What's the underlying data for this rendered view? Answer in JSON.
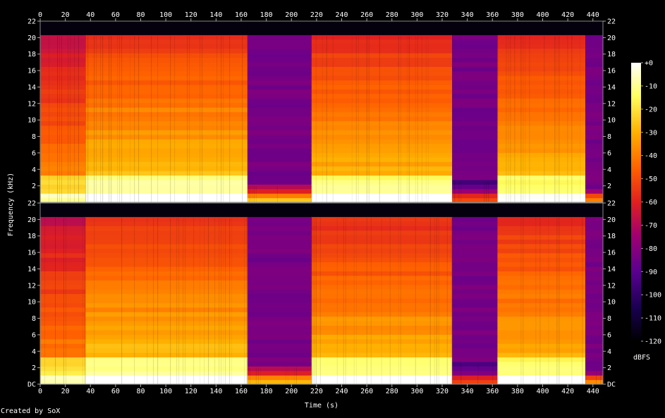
{
  "chart_data": {
    "type": "heatmap",
    "title": "",
    "xlabel": "Time (s)",
    "ylabel": "Frequency (kHz)",
    "xlim": [
      0,
      448
    ],
    "ylim": [
      0,
      22
    ],
    "x_ticks": [
      "0",
      "20",
      "40",
      "60",
      "80",
      "100",
      "120",
      "140",
      "160",
      "180",
      "200",
      "220",
      "240",
      "260",
      "280",
      "300",
      "320",
      "340",
      "360",
      "380",
      "400",
      "420",
      "440"
    ],
    "y_ticks": [
      "DC",
      "2",
      "4",
      "6",
      "8",
      "10",
      "12",
      "14",
      "16",
      "18",
      "20",
      "22"
    ],
    "channels": 2,
    "colorbar": {
      "label": "dBFS",
      "ticks": [
        "+0",
        "-10",
        "-20",
        "-30",
        "-40",
        "-50",
        "-60",
        "-70",
        "-80",
        "-90",
        "-100",
        "-110",
        "-120"
      ],
      "range": [
        -120,
        0
      ]
    },
    "segments": [
      {
        "x0": 0,
        "x1": 36,
        "cutoff_khz": 20.2,
        "loudness": 0.72
      },
      {
        "x0": 36,
        "x1": 165,
        "cutoff_khz": 20.2,
        "loudness": 0.82
      },
      {
        "x0": 165,
        "x1": 216,
        "cutoff_khz": 2.0,
        "loudness": 0.55
      },
      {
        "x0": 216,
        "x1": 328,
        "cutoff_khz": 20.2,
        "loudness": 0.8
      },
      {
        "x0": 328,
        "x1": 364,
        "cutoff_khz": 2.5,
        "loudness": 0.35
      },
      {
        "x0": 364,
        "x1": 434,
        "cutoff_khz": 20.2,
        "loudness": 0.8
      },
      {
        "x0": 434,
        "x1": 448,
        "cutoff_khz": 1.5,
        "loudness": 0.45
      }
    ]
  },
  "footer": "Created by SoX",
  "palette": {
    "stops": [
      "#000000",
      "#1a0050",
      "#5a0090",
      "#a00070",
      "#e02020",
      "#ff6000",
      "#ffb000",
      "#ffff60",
      "#ffffff"
    ]
  }
}
